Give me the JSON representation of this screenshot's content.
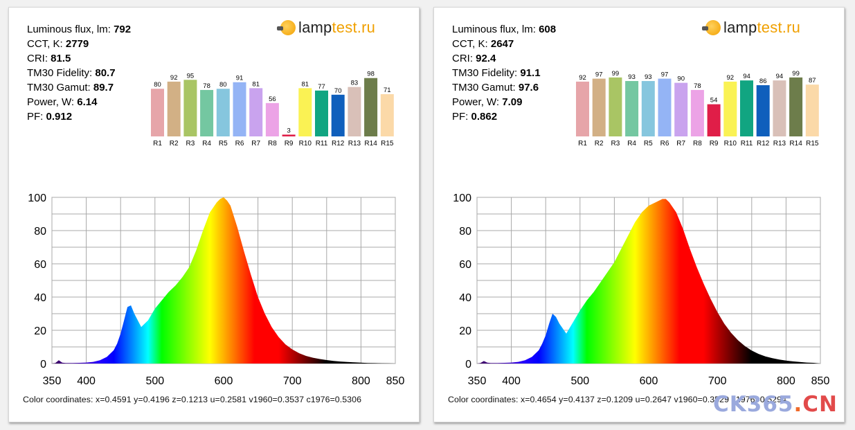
{
  "logo": {
    "lamp": "lamp",
    "test": "test.ru"
  },
  "watermark": {
    "ck": "CK365",
    "dot": ".",
    "cn": "CN"
  },
  "chart_data": [
    {
      "type": "bar+area",
      "stats": [
        {
          "label": "Luminous flux, lm:",
          "value": "792"
        },
        {
          "label": "CCT, K:",
          "value": "2779"
        },
        {
          "label": "CRI:",
          "value": "81.5"
        },
        {
          "label": "TM30 Fidelity:",
          "value": "80.7"
        },
        {
          "label": "TM30 Gamut:",
          "value": "89.7"
        },
        {
          "label": "Power, W:",
          "value": "6.14"
        },
        {
          "label": "PF:",
          "value": "0.912"
        }
      ],
      "cri": {
        "categories": [
          "R1",
          "R2",
          "R3",
          "R4",
          "R5",
          "R6",
          "R7",
          "R8",
          "R9",
          "R10",
          "R11",
          "R12",
          "R13",
          "R14",
          "R15"
        ],
        "values": [
          80,
          92,
          95,
          78,
          80,
          91,
          81,
          56,
          3,
          81,
          77,
          70,
          83,
          98,
          71
        ]
      },
      "spectrum": {
        "x_ticks": [
          350,
          400,
          500,
          600,
          700,
          800,
          850
        ],
        "y_ticks": [
          0,
          20,
          40,
          60,
          80,
          100
        ],
        "xlim": [
          350,
          850
        ],
        "ylim": [
          0,
          100
        ],
        "x": [
          350,
          355,
          360,
          365,
          370,
          380,
          390,
          400,
          410,
          420,
          430,
          440,
          445,
          450,
          455,
          460,
          465,
          470,
          480,
          490,
          500,
          510,
          520,
          530,
          540,
          550,
          560,
          570,
          580,
          590,
          595,
          600,
          605,
          610,
          620,
          630,
          640,
          650,
          660,
          670,
          680,
          690,
          700,
          710,
          720,
          730,
          740,
          750,
          760,
          770,
          780,
          790,
          800,
          810,
          820,
          830,
          840,
          850
        ],
        "y": [
          0,
          0.3,
          2,
          0.5,
          0.3,
          0.3,
          0.4,
          0.6,
          1,
          2,
          4,
          8,
          12,
          18,
          26,
          34,
          35,
          30,
          22,
          26,
          33,
          38,
          43,
          47,
          52,
          58,
          68,
          80,
          91,
          97,
          99,
          100,
          98,
          95,
          82,
          67,
          53,
          40,
          30,
          22,
          16,
          11.5,
          8.5,
          6.2,
          4.6,
          3.5,
          2.7,
          2.1,
          1.6,
          1.2,
          0.9,
          0.7,
          0.5,
          0.35,
          0.25,
          0.15,
          0.1,
          0
        ]
      },
      "coords": "Color coordinates: x=0.4591 y=0.4196 z=0.1213 u=0.2581 v1960=0.3537 c1976=0.5306"
    },
    {
      "type": "bar+area",
      "stats": [
        {
          "label": "Luminous flux, lm:",
          "value": "608"
        },
        {
          "label": "CCT, K:",
          "value": "2647"
        },
        {
          "label": "CRI:",
          "value": "92.4"
        },
        {
          "label": "TM30 Fidelity:",
          "value": "91.1"
        },
        {
          "label": "TM30 Gamut:",
          "value": "97.6"
        },
        {
          "label": "Power, W:",
          "value": "7.09"
        },
        {
          "label": "PF:",
          "value": "0.862"
        }
      ],
      "cri": {
        "categories": [
          "R1",
          "R2",
          "R3",
          "R4",
          "R5",
          "R6",
          "R7",
          "R8",
          "R9",
          "R10",
          "R11",
          "R12",
          "R13",
          "R14",
          "R15"
        ],
        "values": [
          92,
          97,
          99,
          93,
          93,
          97,
          90,
          78,
          54,
          92,
          94,
          86,
          94,
          99,
          87
        ]
      },
      "spectrum": {
        "x_ticks": [
          350,
          400,
          500,
          600,
          700,
          800,
          850
        ],
        "y_ticks": [
          0,
          20,
          40,
          60,
          80,
          100
        ],
        "xlim": [
          350,
          850
        ],
        "ylim": [
          0,
          100
        ],
        "x": [
          350,
          355,
          360,
          365,
          370,
          380,
          390,
          400,
          410,
          420,
          430,
          440,
          445,
          450,
          455,
          460,
          465,
          470,
          480,
          490,
          500,
          510,
          520,
          530,
          540,
          550,
          560,
          570,
          580,
          590,
          600,
          610,
          620,
          625,
          630,
          640,
          650,
          660,
          670,
          680,
          690,
          700,
          710,
          720,
          730,
          740,
          750,
          760,
          770,
          780,
          790,
          800,
          810,
          820,
          830,
          840,
          850
        ],
        "y": [
          0,
          0.3,
          1.5,
          0.5,
          0.3,
          0.3,
          0.4,
          0.6,
          1,
          2,
          4,
          8,
          12,
          17,
          24,
          30,
          28,
          24,
          18,
          25,
          32,
          38,
          43,
          49,
          55,
          61,
          69,
          77,
          85,
          91,
          95,
          97,
          99,
          99,
          97,
          91,
          81,
          69,
          58,
          48,
          39,
          31,
          24,
          18.5,
          14,
          10.5,
          7.8,
          5.8,
          4.3,
          3.2,
          2.4,
          1.8,
          1.3,
          0.9,
          0.6,
          0.4,
          0
        ]
      },
      "coords": "Color coordinates: x=0.4654 y=0.4137 z=0.1209 u=0.2647 v1960=0.3529 c1976=0.5294"
    }
  ]
}
